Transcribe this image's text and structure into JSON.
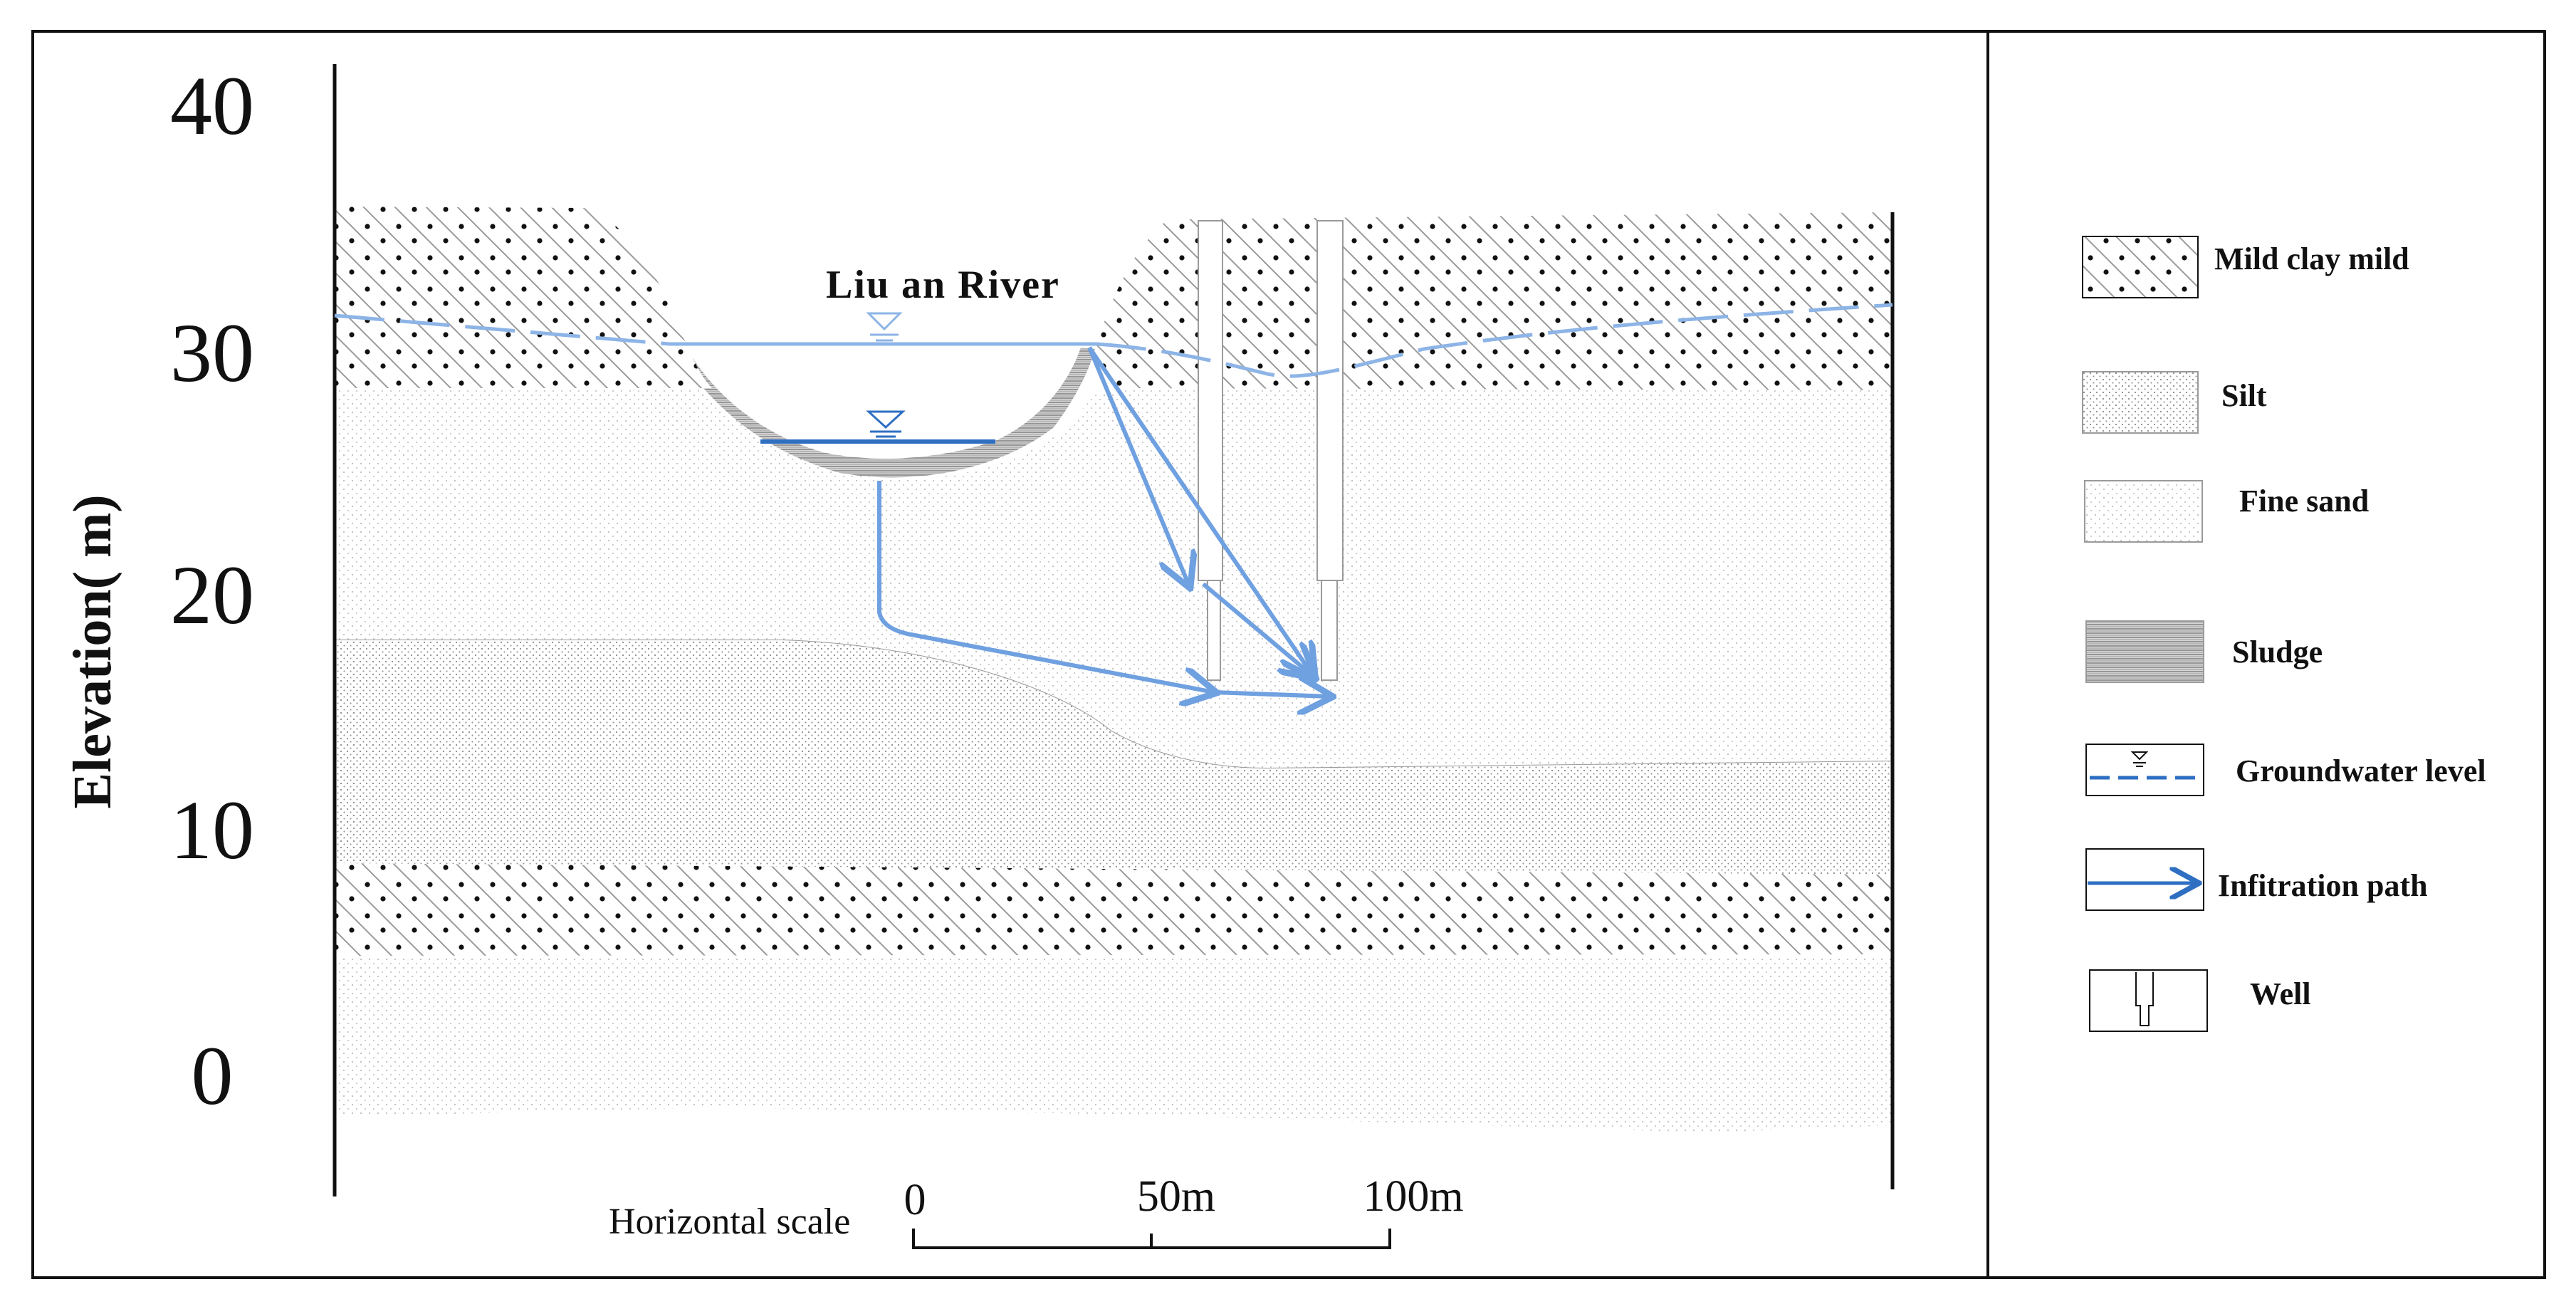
{
  "title": "Liu an River",
  "axis": {
    "ylabel": "Elevation( m)",
    "ticks": [
      "40",
      "30",
      "20",
      "10",
      "0"
    ]
  },
  "scale": {
    "label": "Horizontal scale",
    "ticks": [
      "0",
      "50m",
      "100m"
    ]
  },
  "legend": [
    {
      "name": "legend-clay",
      "label": "Mild clay mild"
    },
    {
      "name": "legend-silt",
      "label": "Silt"
    },
    {
      "name": "legend-fine-sand",
      "label": "Fine sand"
    },
    {
      "name": "legend-sludge",
      "label": "Sludge"
    },
    {
      "name": "legend-groundwater",
      "label": "Groundwater level"
    },
    {
      "name": "legend-infiltration",
      "label": "Infitration path"
    },
    {
      "name": "legend-well",
      "label": "Well"
    }
  ],
  "colors": {
    "water_light": "#8db4e6",
    "water_dark": "#2f6fc2",
    "path": "#6fa0e0",
    "frame": "#111111"
  }
}
